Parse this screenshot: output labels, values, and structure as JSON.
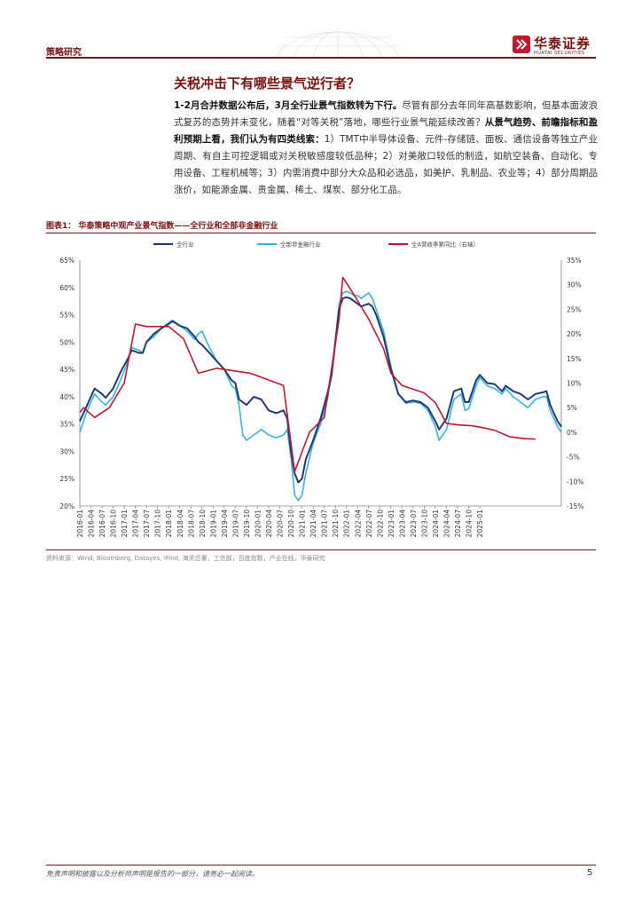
{
  "header": {
    "section": "策略研究",
    "brand_cn": "华泰证券",
    "brand_en": "HUATAI SECURITIES"
  },
  "title": "关税冲击下有哪些景气逆行者？",
  "paragraph": {
    "bold1": "1-2月合并数据公布后，3月全行业景气指数转为下行。",
    "text1": "尽管有部分去年同年高基数影响，但基本面波浪式复苏的态势并未变化，随着“对等关税”落地，哪些行业景气能延续改善？",
    "bold2": "从景气趋势、前瞻指标和盈利预期上看，我们认为有四类线索：",
    "text2": "1）TMT中半导体设备、元件-存储链、面板、通信设备等独立产业周期、有自主可控逻辑或对关税敏感度较低品种；2）对美敞口较低的制造，如航空装备、自动化、专用设备、工程机械等；3）内需消费中部分大众品和必选品，如美护、乳制品、农业等；4）部分周期品涨价，如能源金属、贵金属、稀土、煤炭、部分化工品。"
  },
  "figure": {
    "label": "图表1：  华泰策略中观产业景气指数——全行业和全部非金融行业",
    "source": "资料来源：Wind, Bloomberg, Datayes, iFind, 海关总署，工信部，百度指数，产业在线，华泰研究"
  },
  "footer": {
    "disclaimer": "免责声明和披露以及分析师声明是报告的一部分，请务必一起阅读。",
    "page": "5"
  },
  "chart_data": {
    "type": "line",
    "x_labels": [
      "2016-01",
      "2016-04",
      "2016-07",
      "2016-10",
      "2017-01",
      "2017-04",
      "2017-07",
      "2017-10",
      "2018-01",
      "2018-04",
      "2018-07",
      "2018-10",
      "2019-01",
      "2019-04",
      "2019-07",
      "2019-10",
      "2020-01",
      "2020-04",
      "2020-07",
      "2020-10",
      "2021-01",
      "2021-04",
      "2021-07",
      "2021-10",
      "2022-01",
      "2022-04",
      "2022-07",
      "2022-10",
      "2023-01",
      "2023-04",
      "2023-07",
      "2023-10",
      "2024-01",
      "2024-04",
      "2024-07",
      "2024-10",
      "2025-01"
    ],
    "left_axis": {
      "min": 20,
      "max": 65,
      "step": 5,
      "unit": "%"
    },
    "right_axis": {
      "min": -15,
      "max": 35,
      "step": 5,
      "unit": "%"
    },
    "legend": [
      "全行业",
      "全部非金融行业",
      "全A营收季累同比（右轴）"
    ],
    "colors": {
      "all": "#1f3a73",
      "non_financial": "#39b0e6",
      "revenue": "#c0192b"
    },
    "series_all": [
      [
        0,
        35.5
      ],
      [
        2,
        38.5
      ],
      [
        4,
        41.5
      ],
      [
        6,
        40.5
      ],
      [
        7,
        39.8
      ],
      [
        9,
        41.5
      ],
      [
        11,
        44.5
      ],
      [
        13,
        47
      ],
      [
        14,
        48.5
      ],
      [
        16,
        48
      ],
      [
        17,
        48
      ],
      [
        18,
        50
      ],
      [
        20,
        51.5
      ],
      [
        22,
        52.5
      ],
      [
        24,
        53.3
      ],
      [
        25,
        53.8
      ],
      [
        27,
        53
      ],
      [
        29,
        52.5
      ],
      [
        31,
        51
      ],
      [
        32,
        50
      ],
      [
        33,
        49.5
      ],
      [
        35,
        48
      ],
      [
        37,
        46.5
      ],
      [
        39,
        45
      ],
      [
        41,
        43
      ],
      [
        42,
        42.5
      ],
      [
        43,
        39.5
      ],
      [
        45,
        38.5
      ],
      [
        47,
        40
      ],
      [
        49,
        39.5
      ],
      [
        51,
        37.5
      ],
      [
        53,
        37
      ],
      [
        55,
        37.5
      ],
      [
        56,
        36
      ],
      [
        57,
        30
      ],
      [
        58,
        26
      ],
      [
        59,
        24.3
      ],
      [
        60,
        25
      ],
      [
        61,
        28.5
      ],
      [
        63,
        32
      ],
      [
        65,
        36
      ],
      [
        66,
        38.5
      ],
      [
        67,
        41
      ],
      [
        68,
        44
      ],
      [
        69,
        50
      ],
      [
        70,
        56
      ],
      [
        71,
        58
      ],
      [
        72,
        58.2
      ],
      [
        73,
        58
      ],
      [
        74,
        57.5
      ],
      [
        75,
        57
      ],
      [
        76,
        56.5
      ],
      [
        77,
        56.8
      ],
      [
        78,
        57
      ],
      [
        79,
        56.5
      ],
      [
        80,
        55
      ],
      [
        82,
        51
      ],
      [
        84,
        45
      ],
      [
        86,
        40.5
      ],
      [
        88,
        39
      ],
      [
        90,
        39.3
      ],
      [
        92,
        39
      ],
      [
        94,
        38
      ],
      [
        96,
        35.5
      ],
      [
        97,
        34
      ],
      [
        99,
        36
      ],
      [
        101,
        41
      ],
      [
        103,
        41.5
      ],
      [
        104,
        39
      ],
      [
        105,
        39
      ],
      [
        107,
        43
      ],
      [
        108,
        44
      ],
      [
        110,
        42.5
      ],
      [
        112,
        42.3
      ],
      [
        114,
        41
      ],
      [
        115,
        42
      ],
      [
        117,
        41
      ],
      [
        119,
        40.5
      ],
      [
        121,
        39.5
      ],
      [
        123,
        40.5
      ],
      [
        125,
        40.8
      ],
      [
        126,
        41
      ],
      [
        127,
        38.5
      ],
      [
        128,
        37
      ],
      [
        129,
        35.5
      ],
      [
        130,
        34.5
      ]
    ],
    "series_non_financial": [
      [
        0,
        33.5
      ],
      [
        2,
        37.5
      ],
      [
        4,
        40.5
      ],
      [
        6,
        39
      ],
      [
        7,
        38.5
      ],
      [
        9,
        40
      ],
      [
        11,
        43
      ],
      [
        13,
        46.5
      ],
      [
        14,
        49
      ],
      [
        16,
        48.5
      ],
      [
        17,
        48
      ],
      [
        18,
        50
      ],
      [
        20,
        51
      ],
      [
        22,
        52.5
      ],
      [
        24,
        53.5
      ],
      [
        25,
        54
      ],
      [
        27,
        53
      ],
      [
        29,
        52
      ],
      [
        31,
        50.5
      ],
      [
        32,
        51.5
      ],
      [
        33,
        52
      ],
      [
        35,
        49
      ],
      [
        37,
        46.5
      ],
      [
        39,
        45
      ],
      [
        41,
        42
      ],
      [
        42,
        41.5
      ],
      [
        43,
        38.5
      ],
      [
        44,
        33
      ],
      [
        45,
        32
      ],
      [
        47,
        33
      ],
      [
        49,
        34
      ],
      [
        51,
        33
      ],
      [
        53,
        32.5
      ],
      [
        55,
        33
      ],
      [
        56,
        34
      ],
      [
        57,
        29
      ],
      [
        58,
        22
      ],
      [
        59,
        21
      ],
      [
        60,
        22
      ],
      [
        61,
        26
      ],
      [
        63,
        31.5
      ],
      [
        65,
        35
      ],
      [
        66,
        37.5
      ],
      [
        67,
        40
      ],
      [
        68,
        44.5
      ],
      [
        69,
        50.5
      ],
      [
        70,
        57
      ],
      [
        71,
        59
      ],
      [
        72,
        59.3
      ],
      [
        73,
        59
      ],
      [
        74,
        58.5
      ],
      [
        75,
        58.5
      ],
      [
        76,
        58
      ],
      [
        77,
        58.5
      ],
      [
        78,
        59
      ],
      [
        79,
        58
      ],
      [
        80,
        56
      ],
      [
        82,
        52
      ],
      [
        84,
        45.5
      ],
      [
        86,
        40.5
      ],
      [
        88,
        38.8
      ],
      [
        90,
        39
      ],
      [
        92,
        38.8
      ],
      [
        94,
        37.5
      ],
      [
        96,
        34.5
      ],
      [
        97,
        32
      ],
      [
        99,
        34
      ],
      [
        101,
        39.5
      ],
      [
        103,
        40.5
      ],
      [
        104,
        37.5
      ],
      [
        105,
        37.8
      ],
      [
        107,
        42
      ],
      [
        108,
        43.5
      ],
      [
        110,
        42
      ],
      [
        112,
        41.5
      ],
      [
        114,
        40.5
      ],
      [
        115,
        41.5
      ],
      [
        117,
        40
      ],
      [
        119,
        39
      ],
      [
        121,
        38
      ],
      [
        123,
        39.5
      ],
      [
        125,
        40
      ],
      [
        126,
        40
      ],
      [
        127,
        37.5
      ],
      [
        128,
        36
      ],
      [
        129,
        34.5
      ],
      [
        130,
        33.5
      ]
    ],
    "series_revenue": [
      [
        0,
        4
      ],
      [
        1,
        5
      ],
      [
        4,
        3
      ],
      [
        8,
        5
      ],
      [
        12,
        10
      ],
      [
        15,
        22
      ],
      [
        18,
        21.5
      ],
      [
        24,
        21.5
      ],
      [
        28,
        19
      ],
      [
        32,
        12
      ],
      [
        37,
        13
      ],
      [
        46,
        12
      ],
      [
        55,
        9.5
      ],
      [
        58,
        -8
      ],
      [
        60,
        -4
      ],
      [
        62,
        0
      ],
      [
        66,
        3
      ],
      [
        70,
        23
      ],
      [
        71,
        31.5
      ],
      [
        74,
        28
      ],
      [
        78,
        23
      ],
      [
        82,
        17
      ],
      [
        84,
        12
      ],
      [
        87,
        9.5
      ],
      [
        93,
        8
      ],
      [
        96,
        6
      ],
      [
        99,
        1.8
      ],
      [
        102,
        1.5
      ],
      [
        106,
        1.3
      ],
      [
        109,
        0.9
      ],
      [
        112,
        0.4
      ],
      [
        116,
        -0.9
      ],
      [
        120,
        -1.3
      ],
      [
        123,
        -1.4
      ]
    ]
  }
}
